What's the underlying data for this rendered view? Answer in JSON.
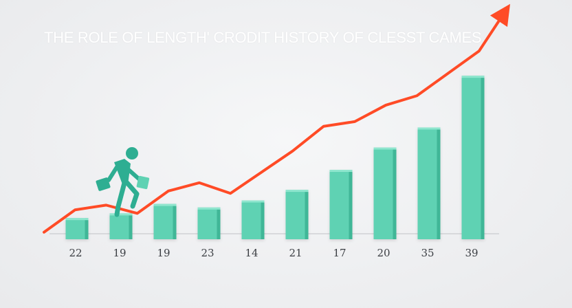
{
  "chart_data": {
    "type": "bar",
    "title": "THE ROLE OF LENGTH' CRODIT HISTORY OF CLESST CAMES",
    "categories": [
      "22",
      "19",
      "19",
      "23",
      "14",
      "21",
      "17",
      "20",
      "35",
      "39"
    ],
    "values": [
      1.8,
      2.2,
      3.0,
      2.7,
      3.3,
      4.2,
      5.9,
      7.8,
      9.5,
      13.9
    ],
    "trend_line": [
      0.6,
      2.5,
      2.9,
      2.2,
      4.1,
      4.8,
      3.9,
      5.7,
      7.5,
      9.6,
      10.0,
      11.4,
      12.2,
      14.1,
      16.0,
      20.0
    ],
    "ylim": [
      0,
      18
    ],
    "grid": false,
    "colors": {
      "bar": "#5fd2b3",
      "bar_dark": "#3fb797",
      "bar_light": "#8fe6ce",
      "trend": "#ff4b26",
      "figure": "#2eae92"
    },
    "icons": [
      "climbing-person-icon",
      "trend-arrow-icon"
    ]
  }
}
